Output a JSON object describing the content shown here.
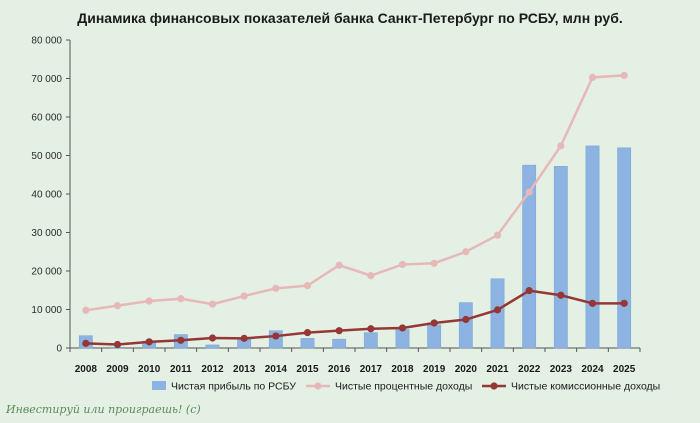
{
  "chart_data": {
    "type": "bar",
    "title": "Динамика финансовых показателей банка Санкт-Петербург по РСБУ, млн руб.",
    "categories": [
      "2008",
      "2009",
      "2010",
      "2011",
      "2012",
      "2013",
      "2014",
      "2015",
      "2016",
      "2017",
      "2018",
      "2019",
      "2020",
      "2021",
      "2022",
      "2023",
      "2024",
      "2025"
    ],
    "ylim": [
      0,
      80000
    ],
    "yticks": [
      0,
      10000,
      20000,
      30000,
      40000,
      50000,
      60000,
      70000,
      80000
    ],
    "ytick_labels": [
      "0",
      "10 000",
      "20 000",
      "30 000",
      "40 000",
      "50 000",
      "60 000",
      "70 000",
      "80 000"
    ],
    "grid": false,
    "legend_position": "bottom",
    "series": [
      {
        "name": "Чистая прибыль по РСБУ",
        "kind": "bar",
        "color": "#8db3e2",
        "values": [
          3200,
          200,
          1800,
          3500,
          800,
          2500,
          4500,
          2500,
          2300,
          4000,
          4800,
          6000,
          11800,
          18000,
          47500,
          47200,
          52500,
          52000
        ]
      },
      {
        "name": "Чистые процентные доходы",
        "kind": "line",
        "color": "#e6b9b8",
        "values": [
          9800,
          11000,
          12200,
          12800,
          11400,
          13500,
          15500,
          16200,
          21500,
          18800,
          21700,
          22000,
          25000,
          29300,
          40500,
          52500,
          70300,
          70800
        ]
      },
      {
        "name": "Чистые комиссионные доходы",
        "kind": "line",
        "color": "#953735",
        "values": [
          1200,
          900,
          1600,
          2000,
          2600,
          2500,
          3100,
          4000,
          4500,
          5000,
          5200,
          6500,
          7400,
          9900,
          14900,
          13700,
          11600,
          11600
        ]
      }
    ],
    "annotation": "Инвестируй или проиграешь! (с)"
  }
}
